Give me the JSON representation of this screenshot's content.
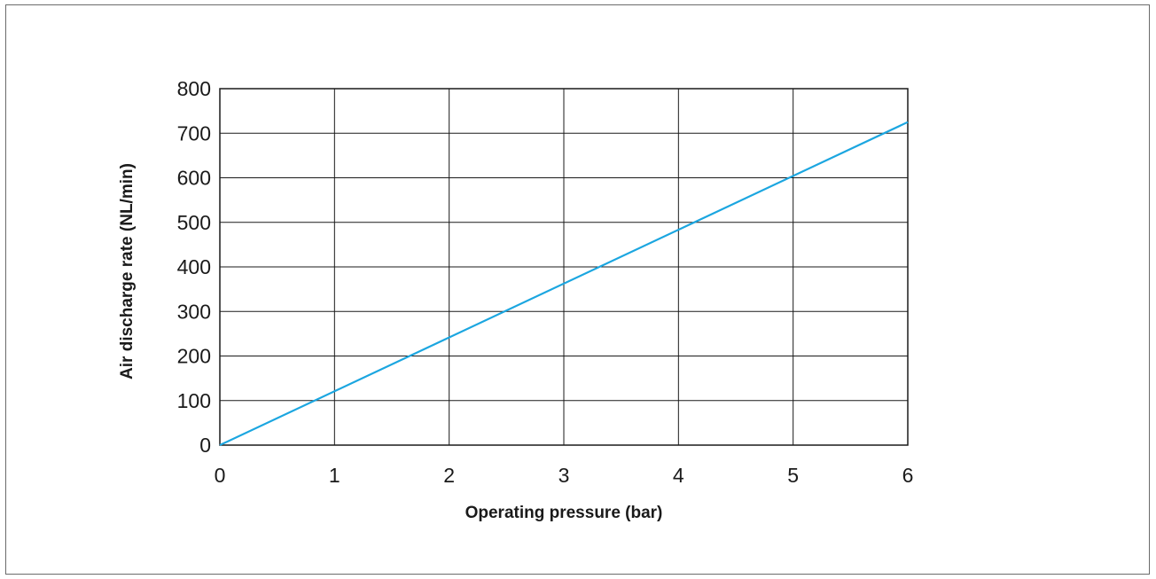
{
  "chart_data": {
    "type": "line",
    "title": "",
    "xlabel": "Operating pressure (bar)",
    "ylabel": "Air discharge rate (NL/min)",
    "xlim": [
      0,
      6
    ],
    "ylim": [
      0,
      800
    ],
    "x_ticks": [
      "0",
      "1",
      "2",
      "3",
      "4",
      "5",
      "6"
    ],
    "y_ticks": [
      "0",
      "100",
      "200",
      "300",
      "400",
      "500",
      "600",
      "700",
      "800"
    ],
    "grid": true,
    "series": [
      {
        "x": [
          0,
          6
        ],
        "y": [
          0,
          725
        ],
        "color": "#1ba6e0"
      }
    ]
  }
}
